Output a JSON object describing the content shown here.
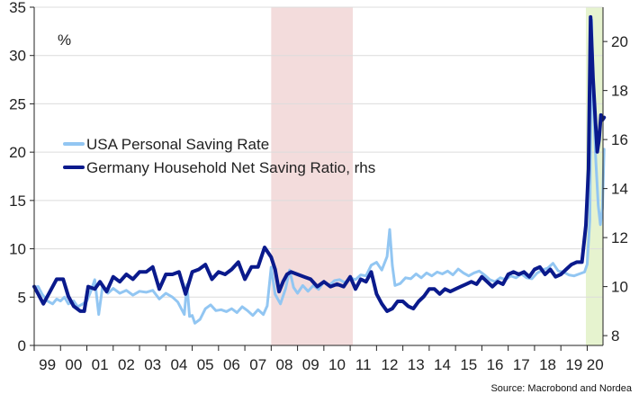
{
  "chart_data": {
    "type": "line",
    "title": "",
    "unit_label": "%",
    "source": "Source: Macrobond and Nordea",
    "legend_position": "center-left",
    "grid": true,
    "x_axis": {
      "range": [
        1999.0,
        2020.6
      ],
      "tick_labels": [
        "99",
        "00",
        "01",
        "02",
        "03",
        "04",
        "05",
        "06",
        "07",
        "08",
        "09",
        "10",
        "11",
        "12",
        "13",
        "14",
        "15",
        "16",
        "17",
        "18",
        "19",
        "20"
      ]
    },
    "y_axis_left": {
      "range": [
        0,
        35
      ],
      "ticks": [
        0,
        5,
        10,
        15,
        20,
        25,
        30,
        35
      ]
    },
    "y_axis_right": {
      "range": [
        7.6,
        21.4
      ],
      "ticks": [
        8,
        10,
        12,
        14,
        16,
        18,
        20
      ]
    },
    "shaded_periods": [
      {
        "from": 2008.0,
        "to": 2011.1,
        "color": "#f3dcdc"
      },
      {
        "from": 2019.95,
        "to": 2020.6,
        "color": "#e6f3cf"
      }
    ],
    "series": [
      {
        "name": "USA Personal Saving Rate",
        "axis": "left",
        "color": "#92c6f2",
        "width": 3,
        "points": [
          [
            1999.0,
            6.0
          ],
          [
            1999.15,
            6.1
          ],
          [
            1999.3,
            5.3
          ],
          [
            1999.5,
            4.6
          ],
          [
            1999.7,
            4.3
          ],
          [
            1999.85,
            4.8
          ],
          [
            2000.0,
            4.6
          ],
          [
            2000.15,
            5.0
          ],
          [
            2000.3,
            4.3
          ],
          [
            2000.5,
            4.6
          ],
          [
            2000.65,
            4.0
          ],
          [
            2000.85,
            4.3
          ],
          [
            2001.0,
            4.6
          ],
          [
            2001.15,
            5.6
          ],
          [
            2001.3,
            6.8
          ],
          [
            2001.45,
            3.2
          ],
          [
            2001.6,
            6.2
          ],
          [
            2001.8,
            5.4
          ],
          [
            2002.0,
            5.9
          ],
          [
            2002.25,
            5.4
          ],
          [
            2002.5,
            5.7
          ],
          [
            2002.75,
            5.2
          ],
          [
            2003.0,
            5.6
          ],
          [
            2003.25,
            5.5
          ],
          [
            2003.5,
            5.7
          ],
          [
            2003.75,
            4.8
          ],
          [
            2004.0,
            5.4
          ],
          [
            2004.25,
            5.0
          ],
          [
            2004.45,
            4.5
          ],
          [
            2004.7,
            3.2
          ],
          [
            2004.8,
            6.3
          ],
          [
            2004.9,
            3.0
          ],
          [
            2005.0,
            3.1
          ],
          [
            2005.1,
            2.3
          ],
          [
            2005.3,
            2.7
          ],
          [
            2005.5,
            3.8
          ],
          [
            2005.7,
            4.2
          ],
          [
            2005.9,
            3.6
          ],
          [
            2006.1,
            3.7
          ],
          [
            2006.3,
            3.5
          ],
          [
            2006.5,
            3.8
          ],
          [
            2006.7,
            3.4
          ],
          [
            2006.9,
            4.0
          ],
          [
            2007.1,
            3.6
          ],
          [
            2007.3,
            3.1
          ],
          [
            2007.5,
            3.7
          ],
          [
            2007.7,
            3.2
          ],
          [
            2007.85,
            4.1
          ],
          [
            2008.0,
            8.1
          ],
          [
            2008.15,
            5.3
          ],
          [
            2008.35,
            4.3
          ],
          [
            2008.55,
            5.9
          ],
          [
            2008.7,
            7.8
          ],
          [
            2008.85,
            6.0
          ],
          [
            2009.0,
            5.4
          ],
          [
            2009.2,
            6.2
          ],
          [
            2009.4,
            5.6
          ],
          [
            2009.6,
            6.2
          ],
          [
            2009.8,
            5.8
          ],
          [
            2010.0,
            6.6
          ],
          [
            2010.2,
            6.2
          ],
          [
            2010.4,
            6.7
          ],
          [
            2010.6,
            6.8
          ],
          [
            2010.8,
            6.5
          ],
          [
            2011.0,
            7.0
          ],
          [
            2011.2,
            6.8
          ],
          [
            2011.4,
            7.3
          ],
          [
            2011.6,
            7.2
          ],
          [
            2011.8,
            8.3
          ],
          [
            2012.0,
            8.6
          ],
          [
            2012.2,
            7.8
          ],
          [
            2012.4,
            9.2
          ],
          [
            2012.5,
            12.0
          ],
          [
            2012.6,
            8.3
          ],
          [
            2012.7,
            6.2
          ],
          [
            2012.9,
            6.4
          ],
          [
            2013.1,
            7.0
          ],
          [
            2013.3,
            6.9
          ],
          [
            2013.5,
            7.4
          ],
          [
            2013.7,
            7.0
          ],
          [
            2013.9,
            7.5
          ],
          [
            2014.1,
            7.2
          ],
          [
            2014.3,
            7.6
          ],
          [
            2014.5,
            7.4
          ],
          [
            2014.7,
            7.7
          ],
          [
            2014.9,
            7.3
          ],
          [
            2015.1,
            7.9
          ],
          [
            2015.3,
            7.5
          ],
          [
            2015.5,
            7.2
          ],
          [
            2015.7,
            7.5
          ],
          [
            2015.9,
            7.7
          ],
          [
            2016.1,
            7.3
          ],
          [
            2016.3,
            6.8
          ],
          [
            2016.5,
            6.6
          ],
          [
            2016.7,
            7.0
          ],
          [
            2016.9,
            6.8
          ],
          [
            2017.1,
            7.2
          ],
          [
            2017.3,
            7.0
          ],
          [
            2017.5,
            7.4
          ],
          [
            2017.7,
            7.0
          ],
          [
            2017.9,
            6.9
          ],
          [
            2018.1,
            7.5
          ],
          [
            2018.3,
            7.8
          ],
          [
            2018.5,
            8.0
          ],
          [
            2018.7,
            8.5
          ],
          [
            2018.9,
            7.7
          ],
          [
            2019.1,
            7.6
          ],
          [
            2019.3,
            7.3
          ],
          [
            2019.5,
            7.2
          ],
          [
            2019.7,
            7.4
          ],
          [
            2019.9,
            7.6
          ],
          [
            2020.0,
            8.4
          ],
          [
            2020.1,
            13.0
          ],
          [
            2020.17,
            33.7
          ],
          [
            2020.25,
            24.0
          ],
          [
            2020.33,
            19.0
          ],
          [
            2020.42,
            14.5
          ],
          [
            2020.5,
            12.5
          ],
          [
            2020.58,
            14.2
          ],
          [
            2020.64,
            20.3
          ]
        ]
      },
      {
        "name": "Germany Household Net Saving Ratio, rhs",
        "axis": "right",
        "color": "#0a1a8c",
        "width": 4,
        "points": [
          [
            1999.0,
            10.0
          ],
          [
            1999.15,
            9.7
          ],
          [
            1999.35,
            9.3
          ],
          [
            1999.6,
            9.8
          ],
          [
            1999.85,
            10.3
          ],
          [
            2000.1,
            10.3
          ],
          [
            2000.3,
            9.6
          ],
          [
            2000.5,
            9.2
          ],
          [
            2000.75,
            9.0
          ],
          [
            2000.9,
            9.0
          ],
          [
            2001.05,
            10.0
          ],
          [
            2001.3,
            9.9
          ],
          [
            2001.5,
            10.2
          ],
          [
            2001.75,
            9.8
          ],
          [
            2002.0,
            10.4
          ],
          [
            2002.25,
            10.2
          ],
          [
            2002.5,
            10.5
          ],
          [
            2002.75,
            10.3
          ],
          [
            2003.0,
            10.6
          ],
          [
            2003.25,
            10.6
          ],
          [
            2003.5,
            10.8
          ],
          [
            2003.75,
            9.9
          ],
          [
            2004.0,
            10.5
          ],
          [
            2004.25,
            10.5
          ],
          [
            2004.5,
            10.6
          ],
          [
            2004.75,
            9.7
          ],
          [
            2005.0,
            10.6
          ],
          [
            2005.25,
            10.7
          ],
          [
            2005.5,
            10.9
          ],
          [
            2005.75,
            10.3
          ],
          [
            2006.0,
            10.6
          ],
          [
            2006.25,
            10.5
          ],
          [
            2006.5,
            10.7
          ],
          [
            2006.75,
            11.0
          ],
          [
            2007.0,
            10.3
          ],
          [
            2007.25,
            10.8
          ],
          [
            2007.5,
            10.8
          ],
          [
            2007.75,
            11.6
          ],
          [
            2008.0,
            11.2
          ],
          [
            2008.15,
            10.7
          ],
          [
            2008.3,
            9.8
          ],
          [
            2008.45,
            10.2
          ],
          [
            2008.6,
            10.5
          ],
          [
            2008.75,
            10.6
          ],
          [
            2009.0,
            10.5
          ],
          [
            2009.25,
            10.4
          ],
          [
            2009.5,
            10.3
          ],
          [
            2009.75,
            10.0
          ],
          [
            2010.0,
            10.2
          ],
          [
            2010.25,
            10.0
          ],
          [
            2010.5,
            10.1
          ],
          [
            2010.75,
            10.0
          ],
          [
            2011.0,
            10.4
          ],
          [
            2011.2,
            9.9
          ],
          [
            2011.4,
            10.3
          ],
          [
            2011.6,
            10.2
          ],
          [
            2011.8,
            10.6
          ],
          [
            2012.0,
            9.7
          ],
          [
            2012.2,
            9.3
          ],
          [
            2012.4,
            9.0
          ],
          [
            2012.6,
            9.1
          ],
          [
            2012.8,
            9.4
          ],
          [
            2013.0,
            9.4
          ],
          [
            2013.2,
            9.2
          ],
          [
            2013.4,
            9.1
          ],
          [
            2013.6,
            9.4
          ],
          [
            2013.8,
            9.6
          ],
          [
            2014.0,
            9.9
          ],
          [
            2014.2,
            9.9
          ],
          [
            2014.4,
            9.7
          ],
          [
            2014.6,
            9.9
          ],
          [
            2014.8,
            9.8
          ],
          [
            2015.0,
            9.9
          ],
          [
            2015.2,
            10.0
          ],
          [
            2015.4,
            10.1
          ],
          [
            2015.6,
            10.2
          ],
          [
            2015.8,
            10.1
          ],
          [
            2016.0,
            10.4
          ],
          [
            2016.2,
            10.2
          ],
          [
            2016.4,
            10.0
          ],
          [
            2016.6,
            10.2
          ],
          [
            2016.8,
            10.1
          ],
          [
            2017.0,
            10.5
          ],
          [
            2017.2,
            10.6
          ],
          [
            2017.4,
            10.5
          ],
          [
            2017.6,
            10.6
          ],
          [
            2017.8,
            10.4
          ],
          [
            2018.0,
            10.7
          ],
          [
            2018.2,
            10.8
          ],
          [
            2018.4,
            10.5
          ],
          [
            2018.6,
            10.7
          ],
          [
            2018.8,
            10.4
          ],
          [
            2019.0,
            10.5
          ],
          [
            2019.2,
            10.7
          ],
          [
            2019.4,
            10.9
          ],
          [
            2019.6,
            11.0
          ],
          [
            2019.8,
            11.0
          ],
          [
            2019.95,
            12.5
          ],
          [
            2020.05,
            14.8
          ],
          [
            2020.13,
            21.0
          ],
          [
            2020.22,
            18.5
          ],
          [
            2020.3,
            17.0
          ],
          [
            2020.38,
            15.5
          ],
          [
            2020.45,
            16.0
          ],
          [
            2020.52,
            17.0
          ],
          [
            2020.58,
            16.8
          ],
          [
            2020.64,
            16.9
          ]
        ]
      }
    ]
  }
}
